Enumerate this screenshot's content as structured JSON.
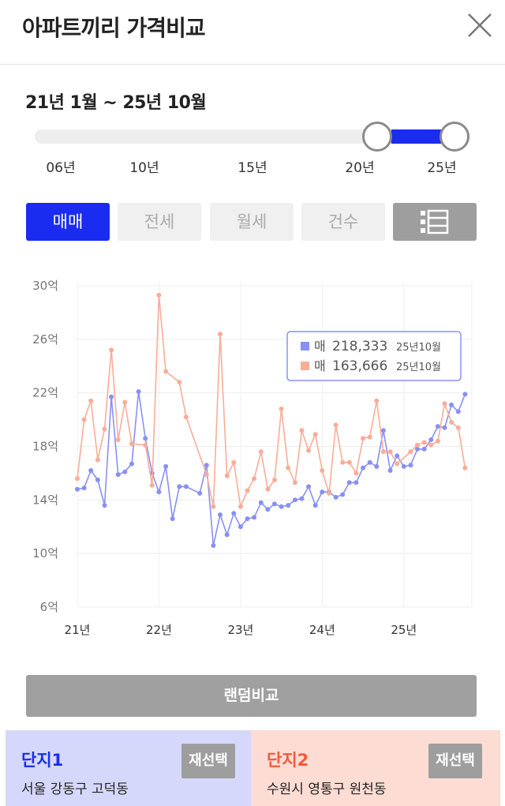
{
  "header": {
    "title": "아파트끼리 가격비교"
  },
  "period": {
    "label": "21년 1월 ~ 25년 10월"
  },
  "slider": {
    "ticks": [
      "06년",
      "10년",
      "15년",
      "20년",
      "25년"
    ]
  },
  "tabs": [
    {
      "label": "매매",
      "active": true
    },
    {
      "label": "전세",
      "active": false
    },
    {
      "label": "월세",
      "active": false
    },
    {
      "label": "건수",
      "active": false
    }
  ],
  "chart_data": {
    "type": "line",
    "y_ticks": [
      "30억",
      "26억",
      "22억",
      "18억",
      "14억",
      "10억",
      "6억"
    ],
    "x_ticks": [
      "21년",
      "22년",
      "23년",
      "24년",
      "25년"
    ],
    "ylim": [
      6,
      30
    ],
    "xlim": [
      0,
      58
    ],
    "legend": [
      {
        "prefix": "매",
        "value": "218,333",
        "date": "25년10월",
        "color": "#8890f4"
      },
      {
        "prefix": "매",
        "value": "163,666",
        "date": "25년10월",
        "color": "#f9ad98"
      }
    ],
    "series": [
      {
        "color": "#8890f4",
        "points": [
          [
            0,
            14.8
          ],
          [
            1,
            14.9
          ],
          [
            2,
            16.2
          ],
          [
            3,
            15.5
          ],
          [
            4,
            13.6
          ],
          [
            5,
            21.7
          ],
          [
            6,
            15.9
          ],
          [
            7,
            16.1
          ],
          [
            8,
            16.7
          ],
          [
            9,
            22.1
          ],
          [
            10,
            18.6
          ],
          [
            11,
            16.0
          ],
          [
            12,
            14.6
          ],
          [
            13,
            16.5
          ],
          [
            14,
            12.6
          ],
          [
            15,
            15.0
          ],
          [
            16,
            15.0
          ],
          [
            18,
            14.5
          ],
          [
            19,
            16.6
          ],
          [
            20,
            10.6
          ],
          [
            21,
            12.9
          ],
          [
            22,
            11.4
          ],
          [
            23,
            13.0
          ],
          [
            24,
            12.0
          ],
          [
            25,
            12.6
          ],
          [
            26,
            12.7
          ],
          [
            27,
            13.8
          ],
          [
            28,
            13.3
          ],
          [
            29,
            13.7
          ],
          [
            30,
            13.5
          ],
          [
            31,
            13.6
          ],
          [
            32,
            14.0
          ],
          [
            33,
            14.1
          ],
          [
            34,
            15.0
          ],
          [
            35,
            13.6
          ],
          [
            36,
            14.6
          ],
          [
            37,
            14.6
          ],
          [
            38,
            14.2
          ],
          [
            39,
            14.4
          ],
          [
            40,
            15.3
          ],
          [
            41,
            15.3
          ],
          [
            42,
            16.4
          ],
          [
            43,
            16.8
          ],
          [
            44,
            16.5
          ],
          [
            45,
            19.2
          ],
          [
            46,
            16.2
          ],
          [
            47,
            17.3
          ],
          [
            48,
            16.5
          ],
          [
            49,
            16.6
          ],
          [
            50,
            17.8
          ],
          [
            51,
            17.8
          ],
          [
            52,
            18.5
          ],
          [
            53,
            19.5
          ],
          [
            54,
            19.4
          ],
          [
            55,
            21.1
          ],
          [
            56,
            20.6
          ],
          [
            57,
            21.9
          ]
        ]
      },
      {
        "color": "#f9ad98",
        "points": [
          [
            0,
            15.6
          ],
          [
            1,
            20.0
          ],
          [
            2,
            21.4
          ],
          [
            3,
            17.0
          ],
          [
            4,
            19.3
          ],
          [
            5,
            25.2
          ],
          [
            6,
            18.5
          ],
          [
            7,
            21.3
          ],
          [
            8,
            18.2
          ],
          [
            10,
            18.1
          ],
          [
            11,
            15.1
          ],
          [
            12,
            29.3
          ],
          [
            13,
            23.6
          ],
          [
            15,
            22.8
          ],
          [
            16,
            20.2
          ],
          [
            19,
            15.9
          ],
          [
            20,
            13.5
          ],
          [
            21,
            26.4
          ],
          [
            22,
            15.8
          ],
          [
            23,
            16.8
          ],
          [
            24,
            13.5
          ],
          [
            25,
            14.7
          ],
          [
            26,
            15.6
          ],
          [
            27,
            17.6
          ],
          [
            28,
            14.8
          ],
          [
            29,
            15.5
          ],
          [
            30,
            20.8
          ],
          [
            31,
            16.4
          ],
          [
            32,
            15.3
          ],
          [
            33,
            19.2
          ],
          [
            34,
            17.7
          ],
          [
            35,
            18.9
          ],
          [
            36,
            16.2
          ],
          [
            37,
            14.5
          ],
          [
            38,
            19.6
          ],
          [
            39,
            16.8
          ],
          [
            40,
            16.8
          ],
          [
            41,
            16.0
          ],
          [
            42,
            18.6
          ],
          [
            43,
            18.7
          ],
          [
            44,
            21.4
          ],
          [
            45,
            17.6
          ],
          [
            46,
            17.6
          ],
          [
            47,
            16.7
          ],
          [
            49,
            17.6
          ],
          [
            50,
            18.1
          ],
          [
            51,
            18.3
          ],
          [
            52,
            18.1
          ],
          [
            53,
            18.4
          ],
          [
            54,
            21.2
          ],
          [
            55,
            19.8
          ],
          [
            56,
            19.4
          ],
          [
            57,
            16.4
          ]
        ]
      }
    ]
  },
  "random_button": {
    "label": "랜덤비교"
  },
  "complexes": [
    {
      "title": "단지1",
      "location": "서울 강동구 고덕동",
      "reselect": "재선택"
    },
    {
      "title": "단지2",
      "location": "수원시 영통구 원천동",
      "reselect": "재선택"
    }
  ]
}
